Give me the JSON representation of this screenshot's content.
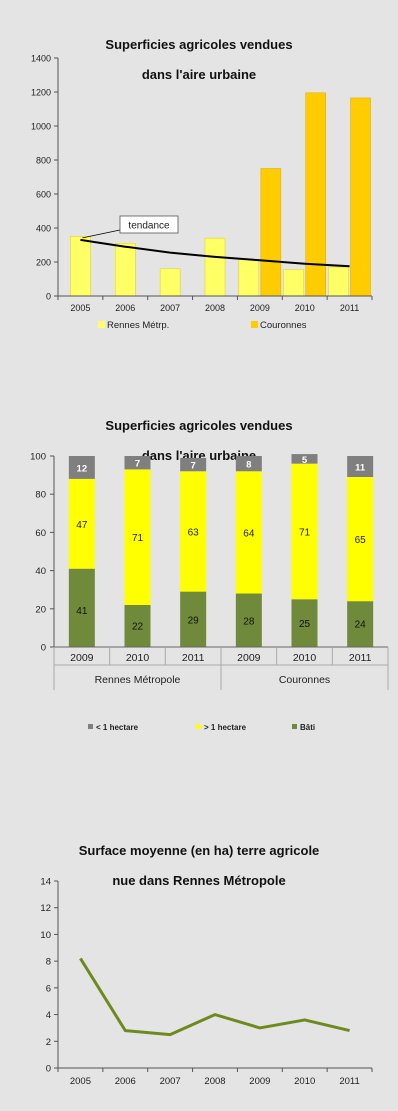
{
  "colors": {
    "background": "#e4e4e4",
    "rennes": "#ffff66",
    "couronnes": "#ffcc00",
    "moins1ha": "#7f7f7f",
    "plus1ha": "#ffff00",
    "bati": "#6e8a3a",
    "line": "#6e8a1e",
    "trend": "#000000"
  },
  "chart_data": [
    {
      "type": "bar",
      "title_lines": [
        "Superficies agricoles vendues",
        "dans l'aire urbaine"
      ],
      "categories": [
        "2005",
        "2006",
        "2007",
        "2008",
        "2009",
        "2010",
        "2011"
      ],
      "series": [
        {
          "name": "Rennes Métrp.",
          "values": [
            350,
            310,
            160,
            340,
            215,
            155,
            170
          ]
        },
        {
          "name": "Couronnes",
          "values": [
            null,
            null,
            null,
            null,
            750,
            1195,
            1165
          ]
        }
      ],
      "trend": {
        "label": "tendance",
        "values": [
          330,
          290,
          255,
          230,
          210,
          190,
          175
        ]
      },
      "ylim": [
        0,
        1400
      ],
      "yticks": [
        0,
        200,
        400,
        600,
        800,
        1000,
        1200,
        1400
      ],
      "legend": "bottom"
    },
    {
      "type": "bar",
      "stacked": true,
      "title_lines": [
        "Superficies agricoles vendues",
        "dans l'aire urbaine"
      ],
      "categories": [
        "2009",
        "2010",
        "2011",
        "2009",
        "2010",
        "2011"
      ],
      "groups": [
        {
          "label": "Rennes Métropole",
          "count": 3
        },
        {
          "label": "Couronnes",
          "count": 3
        }
      ],
      "series": [
        {
          "name": "Bâti",
          "values": [
            41,
            22,
            29,
            28,
            25,
            24
          ],
          "labels": [
            "41",
            "22",
            "29",
            "28",
            "25",
            "24"
          ]
        },
        {
          "name": "> 1 hectare",
          "values": [
            47,
            71,
            63,
            64,
            71,
            65
          ],
          "labels": [
            "47",
            "71",
            "63",
            "64",
            "71",
            "65"
          ]
        },
        {
          "name": "< 1 hectare",
          "values": [
            12,
            7,
            7,
            8,
            5,
            11
          ],
          "labels": [
            "12",
            "7",
            "7",
            "8",
            "5",
            "11"
          ]
        }
      ],
      "legend_items": [
        "< 1 hectare",
        "> 1 hectare",
        "Bâti"
      ],
      "ylim": [
        0,
        100
      ],
      "yticks": [
        0,
        20,
        40,
        60,
        80,
        100
      ],
      "legend": "bottom"
    },
    {
      "type": "line",
      "title_lines": [
        "Surface moyenne (en ha)  terre agricole",
        "nue dans Rennes Métropole"
      ],
      "categories": [
        "2005",
        "2006",
        "2007",
        "2008",
        "2009",
        "2010",
        "2011"
      ],
      "values": [
        8.2,
        2.8,
        2.5,
        4.0,
        3.0,
        3.6,
        2.8
      ],
      "ylim": [
        0,
        14
      ],
      "yticks": [
        0,
        2,
        4,
        6,
        8,
        10,
        12,
        14
      ]
    }
  ]
}
